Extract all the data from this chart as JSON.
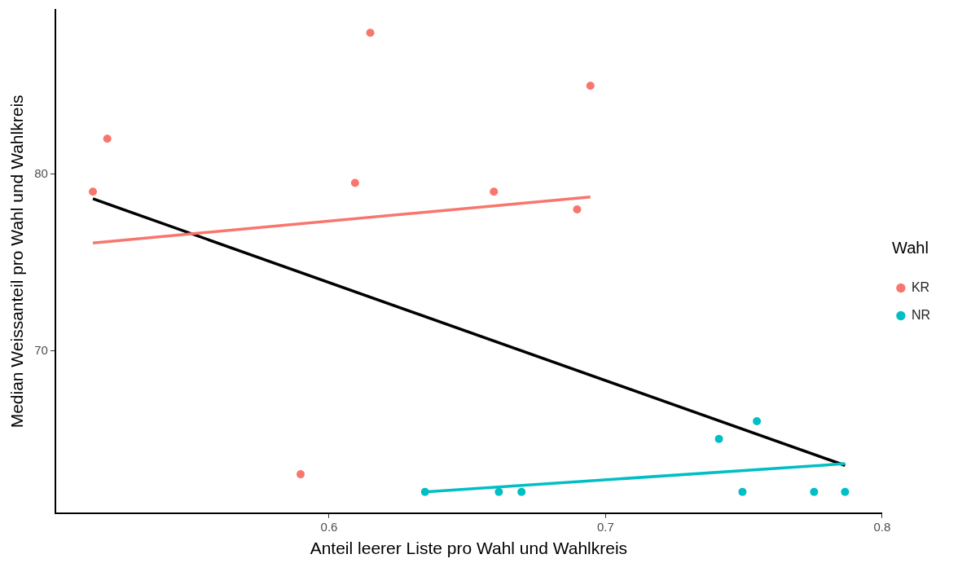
{
  "chart_data": {
    "type": "scatter",
    "xlabel": "Anteil leerer Liste pro Wahl und Wahlkreis",
    "ylabel": "Median Weissanteil pro Wahl und Wahlkreis",
    "legend_title": "Wahl",
    "legend": "right",
    "grid": false,
    "marker": "circle",
    "xlim": [
      0.501,
      0.8
    ],
    "ylim": [
      60.8,
      89.3
    ],
    "xticks": [
      0.6,
      0.7,
      0.8
    ],
    "yticks": [
      70,
      80
    ],
    "series": [
      {
        "name": "KR",
        "color": "#f8766d",
        "x": [
          0.5146,
          0.5198,
          0.6149,
          0.6945,
          0.6094,
          0.6596,
          0.6897,
          0.5897
        ],
        "values": [
          79.0,
          82.0,
          88.0,
          85.0,
          79.5,
          79.0,
          78.0,
          63.0
        ]
      },
      {
        "name": "NR",
        "color": "#00bfc4",
        "x": [
          0.6347,
          0.6614,
          0.6696,
          0.741,
          0.7547,
          0.7495,
          0.7754,
          0.7866
        ],
        "values": [
          62.0,
          62.0,
          62.0,
          65.0,
          66.0,
          62.0,
          62.0,
          62.0
        ]
      },
      {
        "type": "line",
        "marker": "none",
        "color": "#f8766d",
        "x": [
          0.5146,
          0.6945
        ],
        "values": [
          76.1,
          78.7
        ]
      },
      {
        "type": "line",
        "marker": "none",
        "color": "#00bfc4",
        "x": [
          0.6347,
          0.7866
        ],
        "values": [
          62.0,
          63.6
        ]
      },
      {
        "type": "line",
        "marker": "none",
        "color": "#000000",
        "x": [
          0.5146,
          0.7866
        ],
        "values": [
          78.6,
          63.5
        ]
      }
    ]
  }
}
